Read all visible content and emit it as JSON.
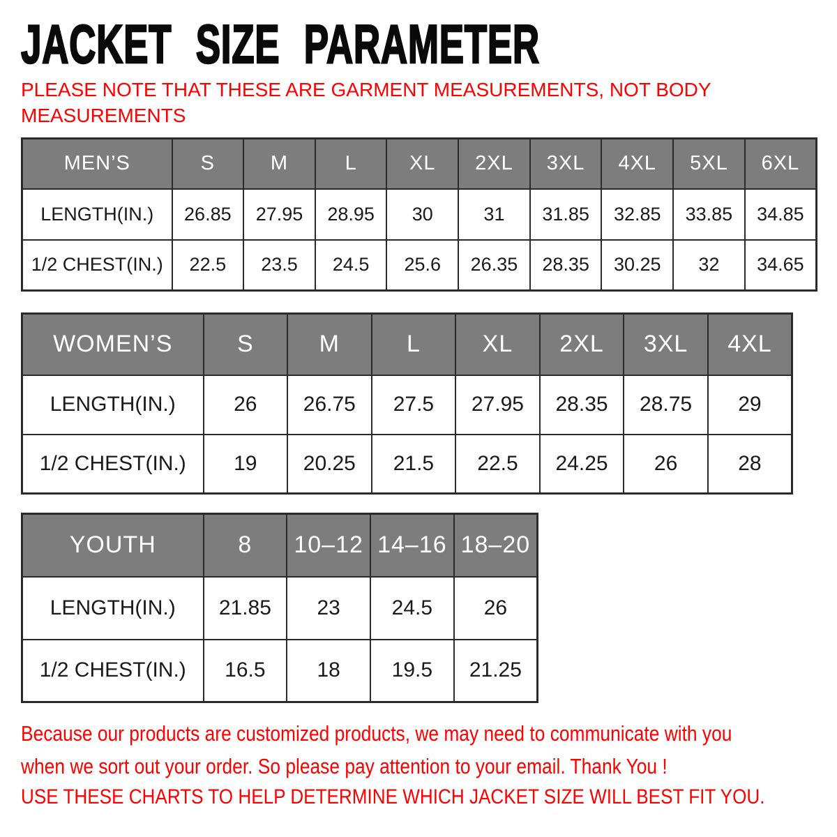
{
  "page": {
    "title": "JACKET SIZE PARAMETER",
    "note_lines": [
      "PLEASE NOTE THAT THESE ARE GARMENT MEASUREMENTS, NOT BODY",
      "MEASUREMENTS"
    ]
  },
  "colors": {
    "accent_red": "#fe0000",
    "table_header_gray": "#7d7d7d",
    "table_border": "#2b2b2b",
    "header_text": "#ffffff",
    "body_text": "#1a1a1a"
  },
  "tables": [
    {
      "name": "mens",
      "header": [
        "MEN’S",
        "S",
        "M",
        "L",
        "XL",
        "2XL",
        "3XL",
        "4XL",
        "5XL",
        "6XL"
      ],
      "rows": [
        {
          "label": "LENGTH(IN.)",
          "values": [
            "26.85",
            "27.95",
            "28.95",
            "30",
            "31",
            "31.85",
            "32.85",
            "33.85",
            "34.85"
          ]
        },
        {
          "label": "1/2 CHEST(IN.)",
          "values": [
            "22.5",
            "23.5",
            "24.5",
            "25.6",
            "26.35",
            "28.35",
            "30.25",
            "32",
            "34.65"
          ]
        }
      ]
    },
    {
      "name": "womens",
      "header": [
        "WOMEN’S",
        "S",
        "M",
        "L",
        "XL",
        "2XL",
        "3XL",
        "4XL"
      ],
      "rows": [
        {
          "label": "LENGTH(IN.)",
          "values": [
            "26",
            "26.75",
            "27.5",
            "27.95",
            "28.35",
            "28.75",
            "29"
          ]
        },
        {
          "label": "1/2 CHEST(IN.)",
          "values": [
            "19",
            "20.25",
            "21.5",
            "22.5",
            "24.25",
            "26",
            "28"
          ]
        }
      ]
    },
    {
      "name": "youth",
      "header": [
        "YOUTH",
        "8",
        "10–12",
        "14–16",
        "18–20"
      ],
      "rows": [
        {
          "label": "LENGTH(IN.)",
          "values": [
            "21.85",
            "23",
            "24.5",
            "26"
          ]
        },
        {
          "label": "1/2 CHEST(IN.)",
          "values": [
            "16.5",
            "18",
            "19.5",
            "21.25"
          ]
        }
      ]
    }
  ],
  "footer": {
    "lines": [
      "Because our products are customized products, we may need to communicate with you",
      "when we sort out your order. So please pay attention to your email. Thank You !"
    ],
    "usage": "USE THESE CHARTS TO HELP DETERMINE WHICH JACKET SIZE WILL BEST FIT YOU."
  }
}
